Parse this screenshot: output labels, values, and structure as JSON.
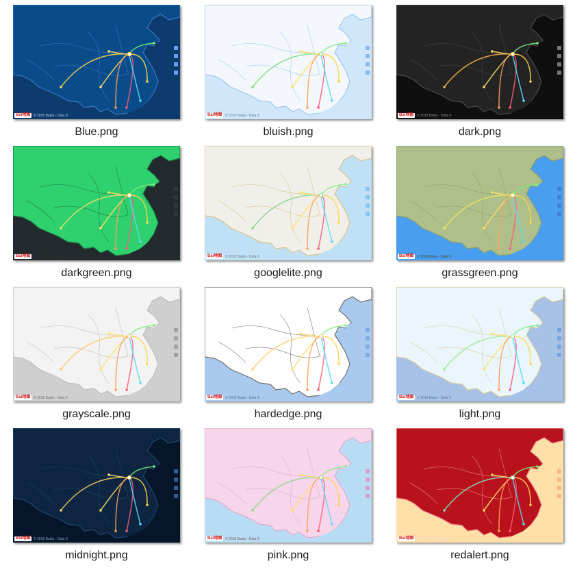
{
  "files": [
    {
      "name": "Blue.png",
      "theme": {
        "water": "#0d3b6e",
        "land": "#0a4c8a",
        "border": "#3a78c0",
        "line": "#ffd54a",
        "ctrl": "#7fb0ff",
        "attrib": "#bcd4f4"
      }
    },
    {
      "name": "bluish.png",
      "theme": {
        "water": "#cfe6fb",
        "land": "#f4f8fd",
        "border": "#9fc7ef",
        "line": "#7be07b",
        "ctrl": "#7fb0e0",
        "attrib": "#5a7fa8"
      }
    },
    {
      "name": "dark.png",
      "theme": {
        "water": "#0f0f0f",
        "land": "#232323",
        "border": "#4a4a4a",
        "line": "#ffb347",
        "ctrl": "#888888",
        "attrib": "#8f8f8f"
      }
    },
    {
      "name": "darkgreen.png",
      "theme": {
        "water": "#222a2e",
        "land": "#2fd06e",
        "border": "#1b7a44",
        "line": "#f0e070",
        "ctrl": "#2e3c40",
        "attrib": "#1d3a28"
      }
    },
    {
      "name": "googlelite.png",
      "theme": {
        "water": "#bfe0f5",
        "land": "#f1efe9",
        "border": "#d6c48a",
        "line": "#8ad38a",
        "ctrl": "#7bbfe8",
        "attrib": "#6b7a8a"
      }
    },
    {
      "name": "grassgreen.png",
      "theme": {
        "water": "#4a9ef0",
        "land": "#aebf8a",
        "border": "#8aa070",
        "line": "#e8e860",
        "ctrl": "#3a7ecf",
        "attrib": "#3e4a30"
      }
    },
    {
      "name": "grayscale.png",
      "theme": {
        "water": "#cfcfcf",
        "land": "#f3f3f3",
        "border": "#bdbdbd",
        "line": "#ffc870",
        "ctrl": "#9a9a9a",
        "attrib": "#6a6a6a"
      }
    },
    {
      "name": "hardedge.png",
      "theme": {
        "water": "#a9c9ee",
        "land": "#ffffff",
        "border": "#707070",
        "line": "#ffcc70",
        "ctrl": "#7aa6da",
        "attrib": "#5a6a80"
      }
    },
    {
      "name": "light.png",
      "theme": {
        "water": "#a7c2e6",
        "land": "#eaf6fc",
        "border": "#d8c89a",
        "line": "#a0e890",
        "ctrl": "#6e9fd8",
        "attrib": "#5a7090"
      }
    },
    {
      "name": "midnight.png",
      "theme": {
        "water": "#06162a",
        "land": "#0d2540",
        "border": "#21466e",
        "line": "#ffd060",
        "ctrl": "#3c6b9c",
        "attrib": "#8aa4c4"
      }
    },
    {
      "name": "pink.png",
      "theme": {
        "water": "#b9dcf5",
        "land": "#f7d6ec",
        "border": "#e0a8cc",
        "line": "#8ad88a",
        "ctrl": "#e090c0",
        "attrib": "#7a5a70"
      }
    },
    {
      "name": "redalert.png",
      "theme": {
        "water": "#ffe0a8",
        "land": "#b8121c",
        "border": "#f28b8b",
        "line": "#80e0c0",
        "ctrl": "#f2b07a",
        "attrib": "#ffd8d8"
      }
    }
  ],
  "map_logo": "Bai地图",
  "map_attribution": "© 2018 Baidu - Data ©",
  "route_colors": [
    "#7cf07c",
    "#ffe066",
    "#ff9f5a",
    "#ff5a7a",
    "#5ad8ff",
    "#ffd54a"
  ]
}
